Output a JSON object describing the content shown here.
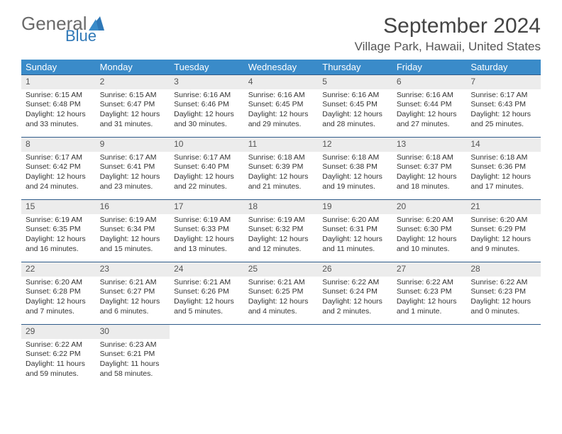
{
  "logo": {
    "general": "General",
    "blue": "Blue"
  },
  "title": "September 2024",
  "location": "Village Park, Hawaii, United States",
  "headers": [
    "Sunday",
    "Monday",
    "Tuesday",
    "Wednesday",
    "Thursday",
    "Friday",
    "Saturday"
  ],
  "colors": {
    "header_bg": "#3a8bc9",
    "header_text": "#ffffff",
    "row_divider": "#2f5b8a",
    "daynum_bg": "#ececec",
    "logo_gray": "#6a6a6a",
    "logo_blue": "#2f78b7"
  },
  "days": [
    {
      "n": "1",
      "sr": "Sunrise: 6:15 AM",
      "ss": "Sunset: 6:48 PM",
      "d1": "Daylight: 12 hours",
      "d2": "and 33 minutes."
    },
    {
      "n": "2",
      "sr": "Sunrise: 6:15 AM",
      "ss": "Sunset: 6:47 PM",
      "d1": "Daylight: 12 hours",
      "d2": "and 31 minutes."
    },
    {
      "n": "3",
      "sr": "Sunrise: 6:16 AM",
      "ss": "Sunset: 6:46 PM",
      "d1": "Daylight: 12 hours",
      "d2": "and 30 minutes."
    },
    {
      "n": "4",
      "sr": "Sunrise: 6:16 AM",
      "ss": "Sunset: 6:45 PM",
      "d1": "Daylight: 12 hours",
      "d2": "and 29 minutes."
    },
    {
      "n": "5",
      "sr": "Sunrise: 6:16 AM",
      "ss": "Sunset: 6:45 PM",
      "d1": "Daylight: 12 hours",
      "d2": "and 28 minutes."
    },
    {
      "n": "6",
      "sr": "Sunrise: 6:16 AM",
      "ss": "Sunset: 6:44 PM",
      "d1": "Daylight: 12 hours",
      "d2": "and 27 minutes."
    },
    {
      "n": "7",
      "sr": "Sunrise: 6:17 AM",
      "ss": "Sunset: 6:43 PM",
      "d1": "Daylight: 12 hours",
      "d2": "and 25 minutes."
    },
    {
      "n": "8",
      "sr": "Sunrise: 6:17 AM",
      "ss": "Sunset: 6:42 PM",
      "d1": "Daylight: 12 hours",
      "d2": "and 24 minutes."
    },
    {
      "n": "9",
      "sr": "Sunrise: 6:17 AM",
      "ss": "Sunset: 6:41 PM",
      "d1": "Daylight: 12 hours",
      "d2": "and 23 minutes."
    },
    {
      "n": "10",
      "sr": "Sunrise: 6:17 AM",
      "ss": "Sunset: 6:40 PM",
      "d1": "Daylight: 12 hours",
      "d2": "and 22 minutes."
    },
    {
      "n": "11",
      "sr": "Sunrise: 6:18 AM",
      "ss": "Sunset: 6:39 PM",
      "d1": "Daylight: 12 hours",
      "d2": "and 21 minutes."
    },
    {
      "n": "12",
      "sr": "Sunrise: 6:18 AM",
      "ss": "Sunset: 6:38 PM",
      "d1": "Daylight: 12 hours",
      "d2": "and 19 minutes."
    },
    {
      "n": "13",
      "sr": "Sunrise: 6:18 AM",
      "ss": "Sunset: 6:37 PM",
      "d1": "Daylight: 12 hours",
      "d2": "and 18 minutes."
    },
    {
      "n": "14",
      "sr": "Sunrise: 6:18 AM",
      "ss": "Sunset: 6:36 PM",
      "d1": "Daylight: 12 hours",
      "d2": "and 17 minutes."
    },
    {
      "n": "15",
      "sr": "Sunrise: 6:19 AM",
      "ss": "Sunset: 6:35 PM",
      "d1": "Daylight: 12 hours",
      "d2": "and 16 minutes."
    },
    {
      "n": "16",
      "sr": "Sunrise: 6:19 AM",
      "ss": "Sunset: 6:34 PM",
      "d1": "Daylight: 12 hours",
      "d2": "and 15 minutes."
    },
    {
      "n": "17",
      "sr": "Sunrise: 6:19 AM",
      "ss": "Sunset: 6:33 PM",
      "d1": "Daylight: 12 hours",
      "d2": "and 13 minutes."
    },
    {
      "n": "18",
      "sr": "Sunrise: 6:19 AM",
      "ss": "Sunset: 6:32 PM",
      "d1": "Daylight: 12 hours",
      "d2": "and 12 minutes."
    },
    {
      "n": "19",
      "sr": "Sunrise: 6:20 AM",
      "ss": "Sunset: 6:31 PM",
      "d1": "Daylight: 12 hours",
      "d2": "and 11 minutes."
    },
    {
      "n": "20",
      "sr": "Sunrise: 6:20 AM",
      "ss": "Sunset: 6:30 PM",
      "d1": "Daylight: 12 hours",
      "d2": "and 10 minutes."
    },
    {
      "n": "21",
      "sr": "Sunrise: 6:20 AM",
      "ss": "Sunset: 6:29 PM",
      "d1": "Daylight: 12 hours",
      "d2": "and 9 minutes."
    },
    {
      "n": "22",
      "sr": "Sunrise: 6:20 AM",
      "ss": "Sunset: 6:28 PM",
      "d1": "Daylight: 12 hours",
      "d2": "and 7 minutes."
    },
    {
      "n": "23",
      "sr": "Sunrise: 6:21 AM",
      "ss": "Sunset: 6:27 PM",
      "d1": "Daylight: 12 hours",
      "d2": "and 6 minutes."
    },
    {
      "n": "24",
      "sr": "Sunrise: 6:21 AM",
      "ss": "Sunset: 6:26 PM",
      "d1": "Daylight: 12 hours",
      "d2": "and 5 minutes."
    },
    {
      "n": "25",
      "sr": "Sunrise: 6:21 AM",
      "ss": "Sunset: 6:25 PM",
      "d1": "Daylight: 12 hours",
      "d2": "and 4 minutes."
    },
    {
      "n": "26",
      "sr": "Sunrise: 6:22 AM",
      "ss": "Sunset: 6:24 PM",
      "d1": "Daylight: 12 hours",
      "d2": "and 2 minutes."
    },
    {
      "n": "27",
      "sr": "Sunrise: 6:22 AM",
      "ss": "Sunset: 6:23 PM",
      "d1": "Daylight: 12 hours",
      "d2": "and 1 minute."
    },
    {
      "n": "28",
      "sr": "Sunrise: 6:22 AM",
      "ss": "Sunset: 6:23 PM",
      "d1": "Daylight: 12 hours",
      "d2": "and 0 minutes."
    },
    {
      "n": "29",
      "sr": "Sunrise: 6:22 AM",
      "ss": "Sunset: 6:22 PM",
      "d1": "Daylight: 11 hours",
      "d2": "and 59 minutes."
    },
    {
      "n": "30",
      "sr": "Sunrise: 6:23 AM",
      "ss": "Sunset: 6:21 PM",
      "d1": "Daylight: 11 hours",
      "d2": "and 58 minutes."
    }
  ]
}
